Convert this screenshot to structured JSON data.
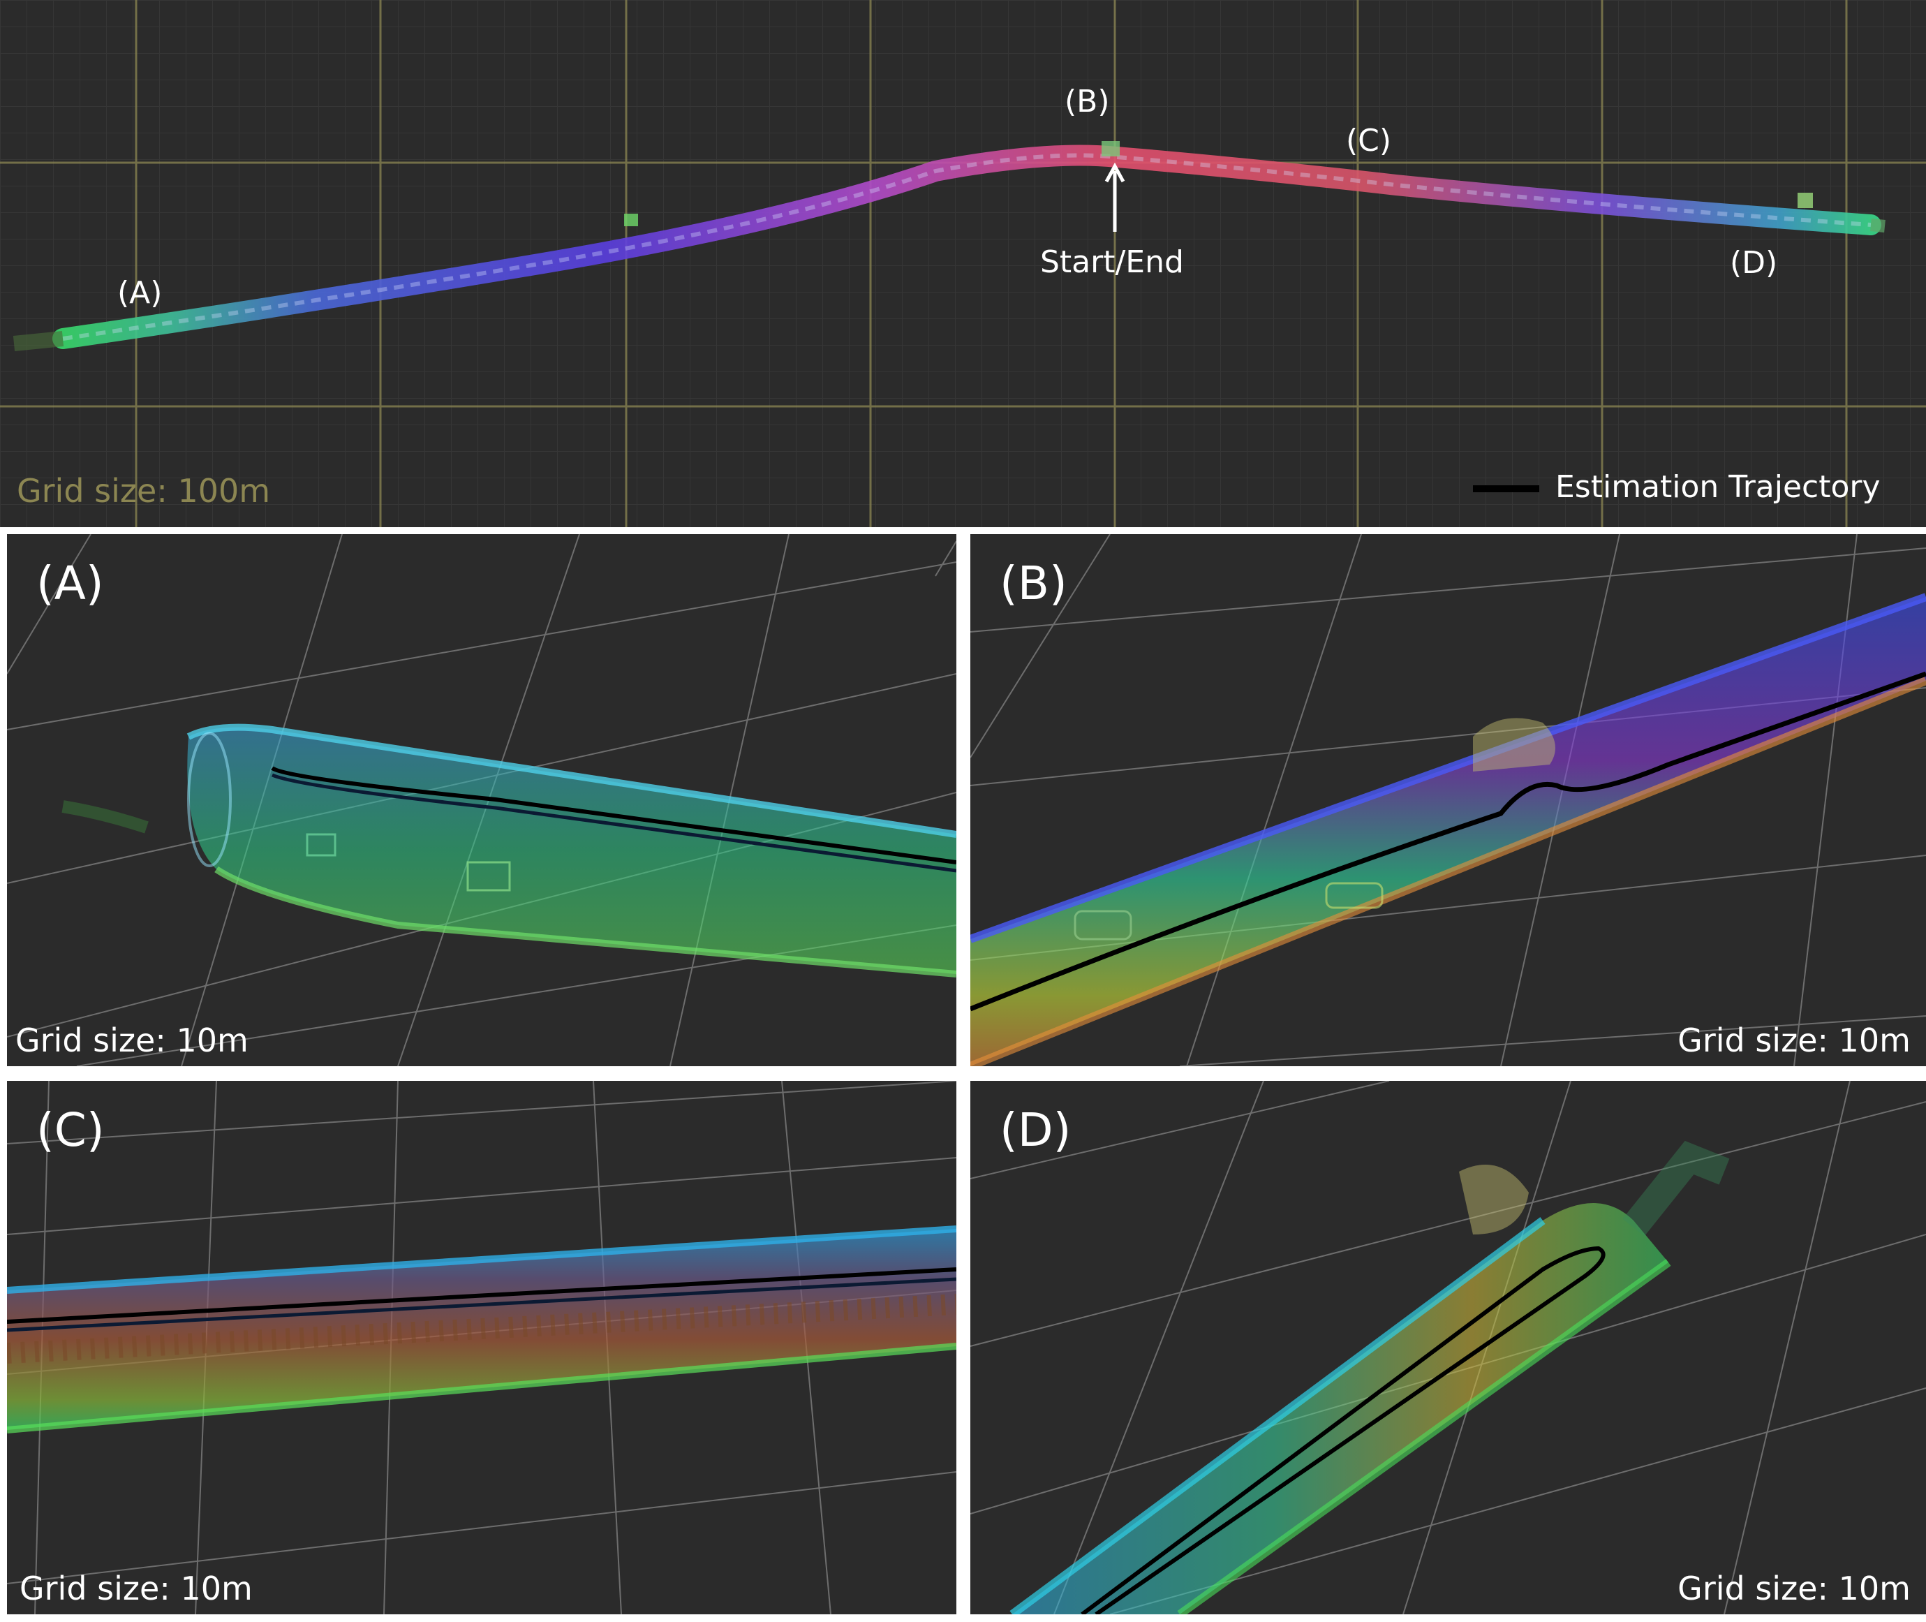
{
  "overview": {
    "markers": [
      "(A)",
      "(B)",
      "(C)",
      "(D)"
    ],
    "start_end": "Start/End",
    "grid_size": "Grid size: 100m",
    "legend": {
      "label": "Estimation Trajectory",
      "color": "#000000"
    },
    "grid_color": "#8c8652"
  },
  "panels": [
    {
      "label": "(A)",
      "grid_size": "Grid size: 10m"
    },
    {
      "label": "(B)",
      "grid_size": "Grid size: 10m"
    },
    {
      "label": "(C)",
      "grid_size": "Grid size: 10m"
    },
    {
      "label": "(D)",
      "grid_size": "Grid size: 10m"
    }
  ],
  "colors": {
    "background": "#2b2b2b",
    "fine_grid": "#555555"
  }
}
